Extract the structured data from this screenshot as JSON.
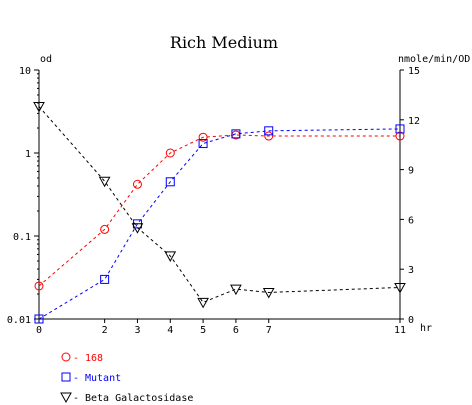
{
  "chart_data": {
    "type": "line",
    "title": "Rich Medium",
    "xlabel": "hr",
    "ylabel_left": "od",
    "ylabel_right": "nmole/min/OD",
    "x_ticks": [
      0,
      2,
      3,
      4,
      5,
      6,
      7,
      11
    ],
    "x_tick_labels": [
      "0",
      "2",
      "3",
      "4",
      "5",
      "6",
      "7",
      "11"
    ],
    "xlim": [
      0,
      11
    ],
    "y_left_scale": "log",
    "y_left_lim": [
      0.01,
      10
    ],
    "y_left_ticks": [
      0.01,
      0.1,
      1,
      10
    ],
    "y_left_tick_labels": [
      "0.01",
      "0.1",
      "1",
      "10"
    ],
    "y_right_scale": "linear",
    "y_right_lim": [
      0,
      15
    ],
    "y_right_ticks": [
      0,
      3,
      6,
      9,
      12,
      15
    ],
    "y_right_tick_labels": [
      "0",
      "3",
      "6",
      "9",
      "12",
      "15"
    ],
    "grid": false,
    "legend_position": "bottom-left",
    "series": [
      {
        "name": "168",
        "axis": "left",
        "color": "#ff0000",
        "marker": "circle",
        "line_style": "dashed",
        "x": [
          0,
          2,
          3,
          4,
          5,
          6,
          7,
          11
        ],
        "y": [
          0.025,
          0.12,
          0.42,
          1.0,
          1.55,
          1.65,
          1.6,
          1.6
        ]
      },
      {
        "name": "Mutant",
        "axis": "left",
        "color": "#0000ff",
        "marker": "square",
        "line_style": "dashed",
        "x": [
          0,
          2,
          3,
          4,
          5,
          6,
          7,
          11
        ],
        "y": [
          0.01,
          0.03,
          0.14,
          0.45,
          1.3,
          1.7,
          1.85,
          1.95
        ]
      },
      {
        "name": "Beta Galactosidase",
        "axis": "right",
        "color": "#000000",
        "marker": "triangle-down",
        "line_style": "dashed",
        "x": [
          0,
          2,
          3,
          4,
          5,
          6,
          7,
          11
        ],
        "y": [
          12.8,
          8.3,
          5.5,
          3.8,
          1.0,
          1.8,
          1.6,
          1.9
        ]
      }
    ]
  }
}
